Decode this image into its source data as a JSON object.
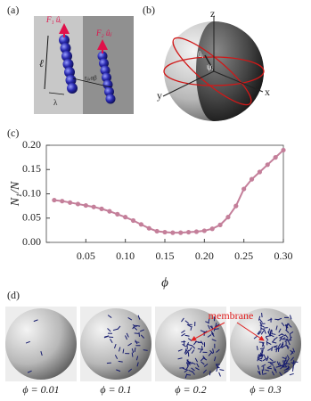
{
  "panels": {
    "a": {
      "label": "(a)",
      "force1": "F₁ ûᵢ",
      "force2": "F₂ ûⱼ",
      "length": "ℓ",
      "distance": "rᵢⱼ,αβ",
      "spacing": "λ"
    },
    "b": {
      "label": "(b)",
      "z": "z",
      "x": "x",
      "y": "y",
      "u": "ûᵢ",
      "psi": "ψᵢ"
    },
    "c": {
      "label": "(c)"
    },
    "d": {
      "label": "(d)",
      "annotation": "membrane",
      "captions": [
        "ϕ = 0.01",
        "ϕ = 0.1",
        "ϕ = 0.2",
        "ϕ = 0.3"
      ]
    }
  },
  "chart_data": {
    "type": "line",
    "x_label": "ϕ",
    "y_label": "N₁/N",
    "x": [
      0.01,
      0.02,
      0.03,
      0.04,
      0.05,
      0.06,
      0.07,
      0.08,
      0.09,
      0.1,
      0.11,
      0.12,
      0.13,
      0.14,
      0.15,
      0.16,
      0.17,
      0.18,
      0.19,
      0.2,
      0.21,
      0.22,
      0.23,
      0.24,
      0.25,
      0.26,
      0.27,
      0.28,
      0.29,
      0.3
    ],
    "series": [
      {
        "color": "#c47f9a",
        "values": [
          0.087,
          0.085,
          0.082,
          0.079,
          0.076,
          0.073,
          0.069,
          0.064,
          0.058,
          0.052,
          0.045,
          0.037,
          0.029,
          0.023,
          0.021,
          0.02,
          0.02,
          0.021,
          0.022,
          0.024,
          0.028,
          0.036,
          0.052,
          0.075,
          0.11,
          0.13,
          0.145,
          0.16,
          0.175,
          0.19
        ]
      }
    ],
    "xlim": [
      0.0,
      0.3
    ],
    "ylim": [
      0.0,
      0.2
    ],
    "xticks": [
      0.05,
      {
        "value": 0.1,
        "label": "0.10"
      },
      0.15,
      {
        "value": 0.2,
        "label": "0.20"
      },
      0.25,
      {
        "value": 0.3,
        "label": "0.30"
      }
    ],
    "yticks": [
      {
        "value": 0,
        "label": "0.00"
      },
      0.05,
      {
        "value": 0.1,
        "label": "0.10"
      },
      0.15,
      {
        "value": 0.2,
        "label": "0.20"
      }
    ]
  }
}
